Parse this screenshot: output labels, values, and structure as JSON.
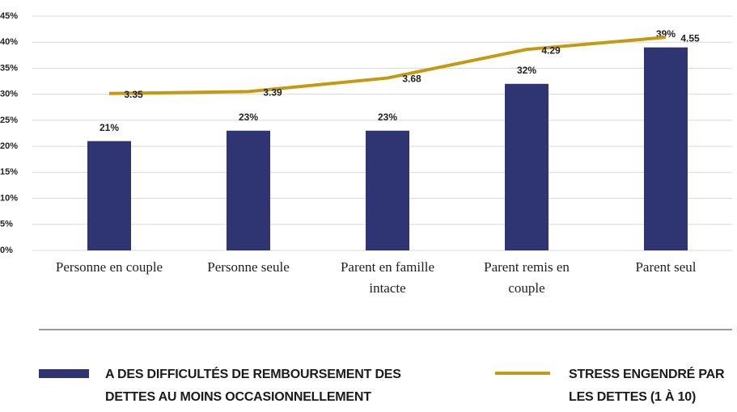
{
  "chart_data": {
    "type": "bar",
    "categories": [
      "Personne en couple",
      "Personne seule",
      "Parent en famille intacte",
      "Parent remis en couple",
      "Parent seul"
    ],
    "series": [
      {
        "name": "A DES DIFFICULTÉS DE REMBOURSEMENT DES DETTES AU MOINS OCCASIONNELLEMENT",
        "type": "bar",
        "color": "#2f3472",
        "values": [
          21,
          23,
          23,
          32,
          39
        ],
        "value_labels": [
          "21%",
          "23%",
          "23%",
          "32%",
          "39%"
        ]
      },
      {
        "name": "STRESS ENGENDRÉ PAR LES DETTES (1 À 10)",
        "type": "line",
        "axis": "y2",
        "color": "#c49a12",
        "values": [
          3.35,
          3.39,
          3.68,
          4.29,
          4.55
        ]
      }
    ],
    "ylim": [
      0,
      45
    ],
    "yticks": [
      {
        "value": 0,
        "label": "0%"
      },
      {
        "value": 5,
        "label": "5%"
      },
      {
        "value": 10,
        "label": "10%"
      },
      {
        "value": 15,
        "label": "15%"
      },
      {
        "value": 20,
        "label": "20%"
      },
      {
        "value": 25,
        "label": "25%"
      },
      {
        "value": 30,
        "label": "30%"
      },
      {
        "value": 35,
        "label": "35%"
      },
      {
        "value": 40,
        "label": "40%"
      },
      {
        "value": 45,
        "label": "45%"
      }
    ],
    "y2lim": [
      0,
      5
    ],
    "grid": true
  }
}
